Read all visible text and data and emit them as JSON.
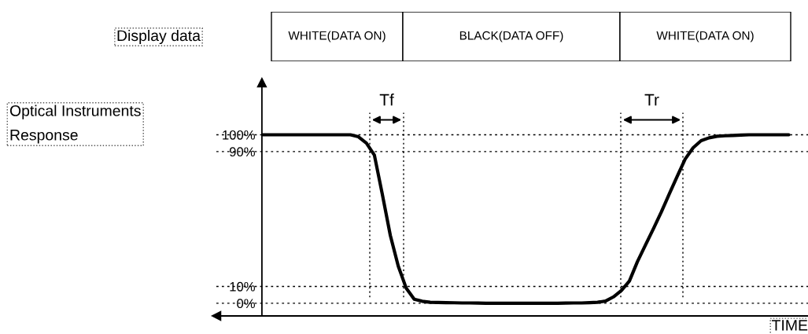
{
  "chart_data": {
    "type": "line",
    "xlabel": "TIME",
    "categories": [
      null,
      null,
      null,
      null,
      null,
      null,
      null,
      null,
      null,
      null,
      null,
      null,
      null,
      null,
      null,
      null,
      null,
      null,
      null,
      null,
      null,
      null,
      null,
      null,
      null,
      null,
      null,
      null,
      null,
      null,
      null,
      null,
      null,
      null,
      null,
      null,
      null,
      null,
      null,
      null,
      null,
      null,
      null,
      null,
      null,
      null,
      null,
      null,
      null,
      null,
      null,
      null,
      null,
      null,
      null,
      null,
      null,
      null,
      null,
      null,
      null,
      null,
      null,
      null,
      null,
      null,
      null
    ],
    "series": [
      {
        "color": "#000000",
        "values": [
          100,
          100,
          100,
          100,
          100,
          100,
          100,
          100,
          100,
          100,
          100,
          100,
          98.8,
          95.0,
          87.9,
          64.6,
          40.3,
          22.0,
          8.9,
          2.4,
          1.2,
          0.6,
          0.5,
          0.4,
          0.3,
          0.2,
          0.2,
          0.1,
          0,
          0,
          0,
          0,
          0,
          0,
          0,
          0,
          0,
          0,
          0.1,
          0.2,
          0.2,
          0.4,
          0.6,
          1.3,
          3.8,
          7.6,
          13.2,
          24.6,
          34.4,
          44.1,
          54.1,
          64.8,
          75.3,
          85.6,
          92.3,
          96.5,
          98.2,
          99.1,
          99.4,
          99.6,
          99.8,
          100,
          100,
          100,
          100,
          100,
          100
        ]
      }
    ],
    "ylim": [
      -7.5,
      131
    ],
    "yticks": [
      {
        "value": 0,
        "label": "0%"
      },
      {
        "value": 10,
        "label": "10%"
      },
      {
        "value": 90,
        "label": "90%"
      },
      {
        "value": 100,
        "label": "100%"
      }
    ],
    "tick_labels": "y",
    "grid": "y",
    "line_style": "solid",
    "marker": "none",
    "annotations": [
      "Display data",
      "WHITE(DATA ON)",
      "BLACK(DATA OFF)",
      "WHITE(DATA ON)",
      "Optical Instruments\nResponse",
      "Tf",
      "Tr"
    ]
  }
}
